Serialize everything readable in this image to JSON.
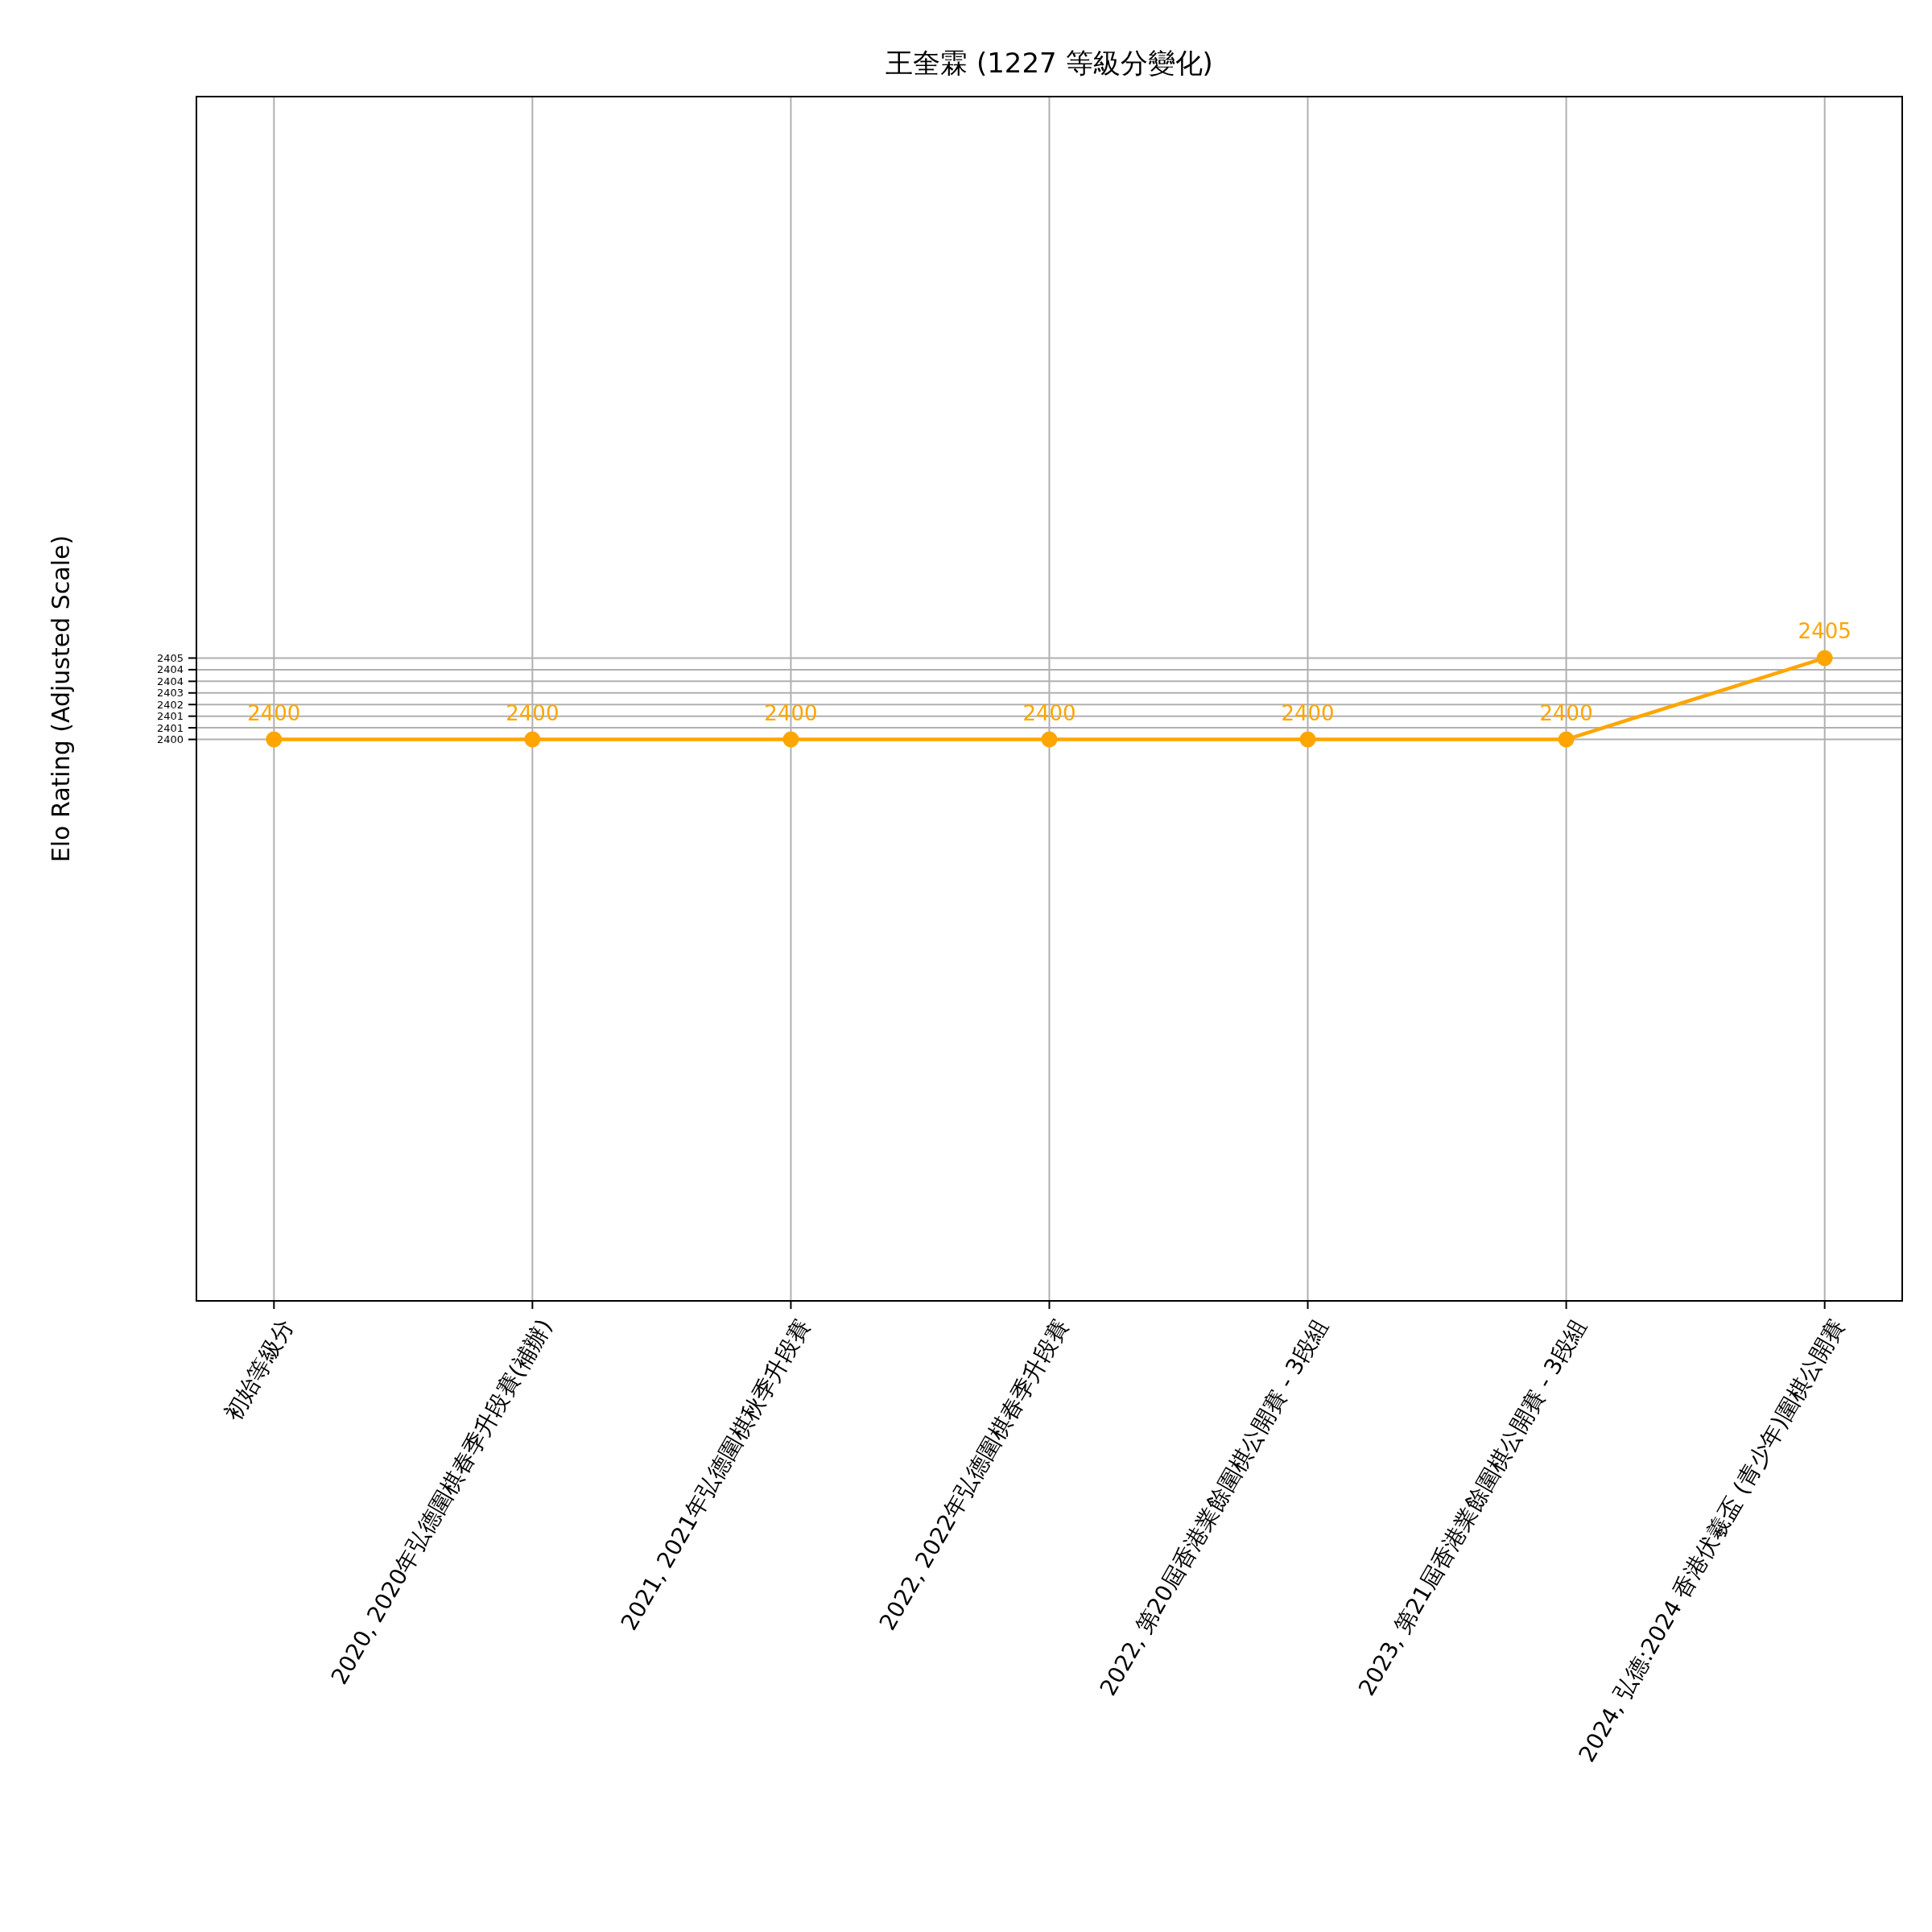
{
  "chart_data": {
    "type": "line",
    "title": "王奎霖 (1227 等級分變化)",
    "ylabel": "Elo Rating (Adjusted Scale)",
    "categories": [
      "初始等級分",
      "2020, 2020年弘德圍棋春季升段賽(補辦)",
      "2021, 2021年弘德圍棋秋季升段賽",
      "2022, 2022年弘德圍棋春季升段賽",
      "2022, 第20屆香港業餘圍棋公開賽 - 3段組",
      "2023, 第21屆香港業餘圍棋公開賽 - 3段組",
      "2024, 弘德:2024 香港伏羲盃 (青少年)圍棋公開賽"
    ],
    "series": [
      {
        "color": "#ffa500",
        "values": [
          2400,
          2400,
          2400,
          2400,
          2400,
          2400,
          2405
        ]
      }
    ],
    "ylim": [
      2365.5,
      2439.5
    ],
    "yticks": [
      2400,
      {
        "value": 2400.714,
        "label": "2401"
      },
      {
        "value": 2401.429,
        "label": "2401"
      },
      {
        "value": 2402.143,
        "label": "2402"
      },
      {
        "value": 2402.857,
        "label": "2403"
      },
      {
        "value": 2403.571,
        "label": "2404"
      },
      {
        "value": 2404.286,
        "label": "2404"
      },
      2405
    ],
    "grid": true,
    "marker": "circle",
    "line_style": "solid",
    "data_labels": true
  }
}
